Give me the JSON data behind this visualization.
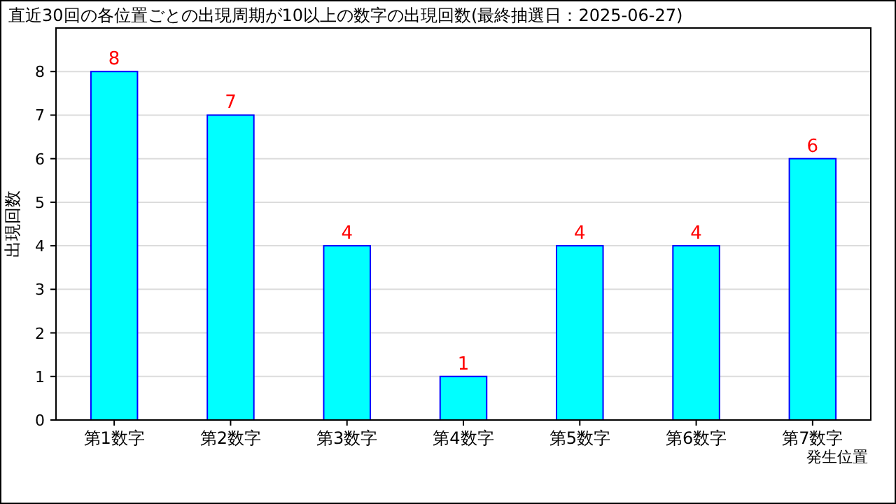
{
  "chart_data": {
    "type": "bar",
    "title": "直近30回の各位置ごとの出現周期が10以上の数字の出現回数(最終抽選日：2025-06-27)",
    "xlabel": "発生位置",
    "ylabel": "出現回数",
    "categories": [
      "第1数字",
      "第2数字",
      "第3数字",
      "第4数字",
      "第5数字",
      "第6数字",
      "第7数字"
    ],
    "values": [
      8,
      7,
      4,
      1,
      4,
      4,
      6
    ],
    "color": "#00ffff",
    "ylim": [
      0,
      9
    ],
    "yticks": [
      0,
      1,
      2,
      3,
      4,
      5,
      6,
      7,
      8
    ],
    "grid": "y",
    "data_labels": true
  }
}
